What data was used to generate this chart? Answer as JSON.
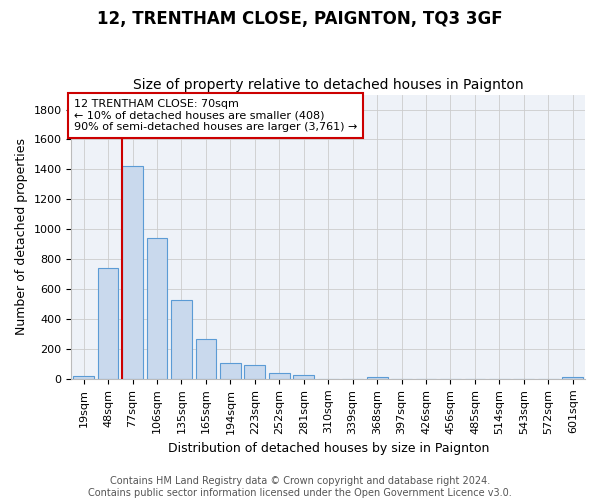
{
  "title": "12, TRENTHAM CLOSE, PAIGNTON, TQ3 3GF",
  "subtitle": "Size of property relative to detached houses in Paignton",
  "xlabel": "Distribution of detached houses by size in Paignton",
  "ylabel": "Number of detached properties",
  "categories": [
    "19sqm",
    "48sqm",
    "77sqm",
    "106sqm",
    "135sqm",
    "165sqm",
    "194sqm",
    "223sqm",
    "252sqm",
    "281sqm",
    "310sqm",
    "339sqm",
    "368sqm",
    "397sqm",
    "426sqm",
    "456sqm",
    "485sqm",
    "514sqm",
    "543sqm",
    "572sqm",
    "601sqm"
  ],
  "values": [
    22,
    740,
    1420,
    940,
    530,
    265,
    105,
    92,
    40,
    28,
    0,
    0,
    14,
    0,
    0,
    0,
    0,
    0,
    0,
    0,
    14
  ],
  "bar_color": "#c9d9ed",
  "bar_edge_color": "#5b9bd5",
  "annotation_line1": "12 TRENTHAM CLOSE: 70sqm",
  "annotation_line2": "← 10% of detached houses are smaller (408)",
  "annotation_line3": "90% of semi-detached houses are larger (3,761) →",
  "annotation_box_color": "#ffffff",
  "annotation_box_edge_color": "#cc0000",
  "vline_color": "#cc0000",
  "vline_bar_index": 2,
  "ylim": [
    0,
    1900
  ],
  "yticks": [
    0,
    200,
    400,
    600,
    800,
    1000,
    1200,
    1400,
    1600,
    1800
  ],
  "grid_color": "#cccccc",
  "bg_color": "#eef2f8",
  "footer": "Contains HM Land Registry data © Crown copyright and database right 2024.\nContains public sector information licensed under the Open Government Licence v3.0.",
  "title_fontsize": 12,
  "subtitle_fontsize": 10,
  "ylabel_fontsize": 9,
  "xlabel_fontsize": 9,
  "tick_fontsize": 8,
  "annot_fontsize": 8,
  "footer_fontsize": 7
}
